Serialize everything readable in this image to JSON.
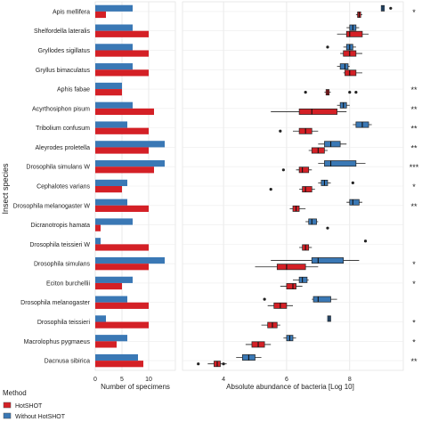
{
  "chart_data": [
    {
      "type": "bar",
      "orientation": "horizontal",
      "xlabel": "Number of specimens",
      "ylabel": "Insect species",
      "xlim": [
        0,
        15
      ],
      "xticks": [
        "0",
        "5",
        "10"
      ],
      "categories": [
        "Apis mellifera",
        "Shelfordella lateralis",
        "Gryllodes sigillatus",
        "Gryllus bimaculatus",
        "Aphis fabae",
        "Acyrthosiphon pisum",
        "Tribolium confusum",
        "Aleyrodes proletella",
        "Drosophila simulans W",
        "Cephalotes varians",
        "Drosophila melanogaster W",
        "Dicranotropis hamata",
        "Drosophila teissieri W",
        "Drosophila simulans",
        "Eciton burchellii",
        "Drosophila melanogaster",
        "Drosophila teissieri",
        "Macrolophus pygmaeus",
        "Dacnusa sibirica"
      ],
      "series": [
        {
          "name": "Without HotSHOT",
          "color": "#3a78b5",
          "values": [
            7,
            7,
            7,
            7,
            5,
            7,
            6,
            13,
            13,
            6,
            6,
            7,
            1,
            13,
            7,
            6,
            2,
            6,
            8
          ]
        },
        {
          "name": "HotSHOT",
          "color": "#d42026",
          "values": [
            2,
            10,
            10,
            10,
            5,
            11,
            10,
            10,
            11,
            5,
            10,
            1,
            10,
            10,
            5,
            10,
            10,
            4,
            9
          ]
        }
      ],
      "grid": true
    },
    {
      "type": "boxplot",
      "orientation": "horizontal",
      "xlabel": "Absolute abundance of bacteria [Log 10]",
      "xlim": [
        2.7,
        9.7
      ],
      "xticks": [
        "4",
        "6",
        "8"
      ],
      "categories": [
        "Apis mellifera",
        "Shelfordella lateralis",
        "Gryllodes sigillatus",
        "Gryllus bimaculatus",
        "Aphis fabae",
        "Acyrthosiphon pisum",
        "Tribolium confusum",
        "Aleyrodes proletella",
        "Drosophila simulans W",
        "Cephalotes varians",
        "Drosophila melanogaster W",
        "Dicranotropis hamata",
        "Drosophila teissieri W",
        "Drosophila simulans",
        "Eciton burchellii",
        "Drosophila melanogaster",
        "Drosophila teissieri",
        "Macrolophus pygmaeus",
        "Dacnusa sibirica"
      ],
      "series": [
        {
          "name": "Without HotSHOT",
          "color": "#3a78b5",
          "boxes": [
            {
              "min": 9.0,
              "q1": 9.0,
              "median": 9.05,
              "q3": 9.1,
              "max": 9.1,
              "outliers": [
                9.3
              ]
            },
            {
              "min": 7.9,
              "q1": 8.0,
              "median": 8.1,
              "q3": 8.2,
              "max": 8.3,
              "outliers": []
            },
            {
              "min": 7.8,
              "q1": 7.9,
              "median": 8.0,
              "q3": 8.1,
              "max": 8.2,
              "outliers": [
                7.3
              ]
            },
            {
              "min": 7.6,
              "q1": 7.7,
              "median": 7.85,
              "q3": 7.95,
              "max": 8.0,
              "outliers": []
            },
            {
              "min": null,
              "q1": null,
              "median": null,
              "q3": null,
              "max": null,
              "outliers": []
            },
            {
              "min": 7.6,
              "q1": 7.7,
              "median": 7.8,
              "q3": 7.9,
              "max": 8.0,
              "outliers": []
            },
            {
              "min": 8.1,
              "q1": 8.2,
              "median": 8.4,
              "q3": 8.6,
              "max": 8.7,
              "outliers": []
            },
            {
              "min": 7.0,
              "q1": 7.2,
              "median": 7.4,
              "q3": 7.7,
              "max": 7.9,
              "outliers": []
            },
            {
              "min": 7.0,
              "q1": 7.2,
              "median": 7.4,
              "q3": 8.2,
              "max": 8.5,
              "outliers": []
            },
            {
              "min": 7.0,
              "q1": 7.1,
              "median": 7.2,
              "q3": 7.3,
              "max": 7.4,
              "outliers": [
                8.1
              ]
            },
            {
              "min": 7.9,
              "q1": 8.0,
              "median": 8.1,
              "q3": 8.3,
              "max": 8.4,
              "outliers": []
            },
            {
              "min": 6.6,
              "q1": 6.7,
              "median": 6.8,
              "q3": 6.95,
              "max": 7.0,
              "outliers": []
            },
            {
              "min": null,
              "q1": null,
              "median": null,
              "q3": null,
              "max": null,
              "outliers": [
                8.5
              ]
            },
            {
              "min": 5.5,
              "q1": 6.8,
              "median": 7.0,
              "q3": 7.8,
              "max": 8.3,
              "outliers": []
            },
            {
              "min": 6.2,
              "q1": 6.4,
              "median": 6.5,
              "q3": 6.65,
              "max": 6.7,
              "outliers": []
            },
            {
              "min": 6.8,
              "q1": 6.85,
              "median": 7.0,
              "q3": 7.4,
              "max": 7.6,
              "outliers": [
                5.3
              ]
            },
            {
              "min": 7.3,
              "q1": 7.3,
              "median": 7.35,
              "q3": 7.4,
              "max": 7.4,
              "outliers": []
            },
            {
              "min": 5.9,
              "q1": 6.0,
              "median": 6.1,
              "q3": 6.2,
              "max": 6.3,
              "outliers": []
            },
            {
              "min": 4.4,
              "q1": 4.6,
              "median": 4.8,
              "q3": 5.0,
              "max": 5.2,
              "outliers": []
            }
          ]
        },
        {
          "name": "HotSHOT",
          "color": "#d42026",
          "boxes": [
            {
              "min": 8.2,
              "q1": 8.25,
              "median": 8.3,
              "q3": 8.35,
              "max": 8.4,
              "outliers": []
            },
            {
              "min": 7.6,
              "q1": 7.9,
              "median": 8.0,
              "q3": 8.4,
              "max": 8.6,
              "outliers": []
            },
            {
              "min": 7.7,
              "q1": 7.8,
              "median": 8.0,
              "q3": 8.2,
              "max": 8.4,
              "outliers": []
            },
            {
              "min": 7.8,
              "q1": 7.85,
              "median": 8.0,
              "q3": 8.2,
              "max": 8.4,
              "outliers": []
            },
            {
              "min": 7.2,
              "q1": 7.25,
              "median": 7.3,
              "q3": 7.35,
              "max": 7.4,
              "outliers": [
                6.6,
                8.0,
                8.2
              ]
            },
            {
              "min": 5.5,
              "q1": 6.4,
              "median": 6.8,
              "q3": 7.6,
              "max": 7.9,
              "outliers": []
            },
            {
              "min": 6.2,
              "q1": 6.4,
              "median": 6.6,
              "q3": 6.8,
              "max": 7.0,
              "outliers": [
                5.8
              ]
            },
            {
              "min": 6.7,
              "q1": 6.8,
              "median": 7.0,
              "q3": 7.2,
              "max": 7.3,
              "outliers": []
            },
            {
              "min": 6.3,
              "q1": 6.4,
              "median": 6.5,
              "q3": 6.7,
              "max": 6.8,
              "outliers": [
                5.9
              ]
            },
            {
              "min": 6.4,
              "q1": 6.5,
              "median": 6.6,
              "q3": 6.8,
              "max": 6.9,
              "outliers": [
                5.5
              ]
            },
            {
              "min": 6.1,
              "q1": 6.2,
              "median": 6.3,
              "q3": 6.4,
              "max": 6.6,
              "outliers": []
            },
            {
              "min": null,
              "q1": null,
              "median": null,
              "q3": null,
              "max": null,
              "outliers": [
                7.3
              ]
            },
            {
              "min": 6.4,
              "q1": 6.5,
              "median": 6.6,
              "q3": 6.7,
              "max": 6.8,
              "outliers": []
            },
            {
              "min": 5.0,
              "q1": 5.7,
              "median": 6.0,
              "q3": 6.6,
              "max": 7.0,
              "outliers": []
            },
            {
              "min": 5.8,
              "q1": 6.0,
              "median": 6.2,
              "q3": 6.3,
              "max": 6.5,
              "outliers": []
            },
            {
              "min": 5.4,
              "q1": 5.6,
              "median": 5.8,
              "q3": 6.0,
              "max": 6.2,
              "outliers": []
            },
            {
              "min": 5.2,
              "q1": 5.4,
              "median": 5.55,
              "q3": 5.7,
              "max": 5.8,
              "outliers": []
            },
            {
              "min": 4.7,
              "q1": 4.9,
              "median": 5.1,
              "q3": 5.3,
              "max": 5.5,
              "outliers": []
            },
            {
              "min": 3.5,
              "q1": 3.7,
              "median": 3.8,
              "q3": 3.9,
              "max": 4.1,
              "outliers": [
                3.2,
                4.0
              ]
            }
          ]
        }
      ],
      "significance": [
        "*",
        "",
        "",
        "",
        "**",
        "**",
        "**",
        "**",
        "***",
        "*",
        "**",
        "",
        "",
        "*",
        "*",
        "",
        "*",
        "*",
        "**"
      ],
      "grid": true
    }
  ],
  "legend": {
    "title": "Method",
    "items": [
      {
        "label": "HotSHOT",
        "color": "#d42026"
      },
      {
        "label": "Without  HotSHOT",
        "color": "#3a78b5"
      }
    ]
  }
}
